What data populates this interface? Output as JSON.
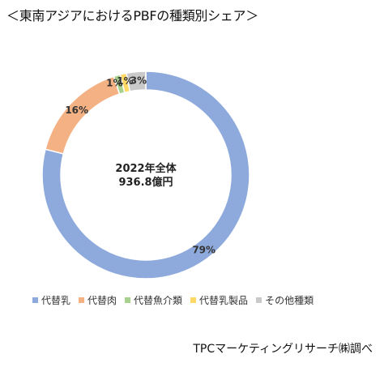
{
  "title": "＜東南アジアにおけるPBFの種類別シェア＞",
  "source": "TPCマーケティングリサーチ㈱調べ",
  "chart_data": {
    "type": "pie",
    "donut": true,
    "center_label_line1": "2022年全体",
    "center_label_line2": "936.8億円",
    "categories": [
      "代替乳",
      "代替肉",
      "代替魚介類",
      "代替乳製品",
      "その他種類"
    ],
    "values": [
      79,
      16,
      1,
      1,
      3
    ],
    "labels": [
      "79%",
      "16%",
      "1%",
      "1%",
      "3%"
    ],
    "colors": [
      "#8eaadc",
      "#f4b183",
      "#a9d18e",
      "#ffd966",
      "#c9c9c9"
    ],
    "legend_position": "bottom"
  }
}
